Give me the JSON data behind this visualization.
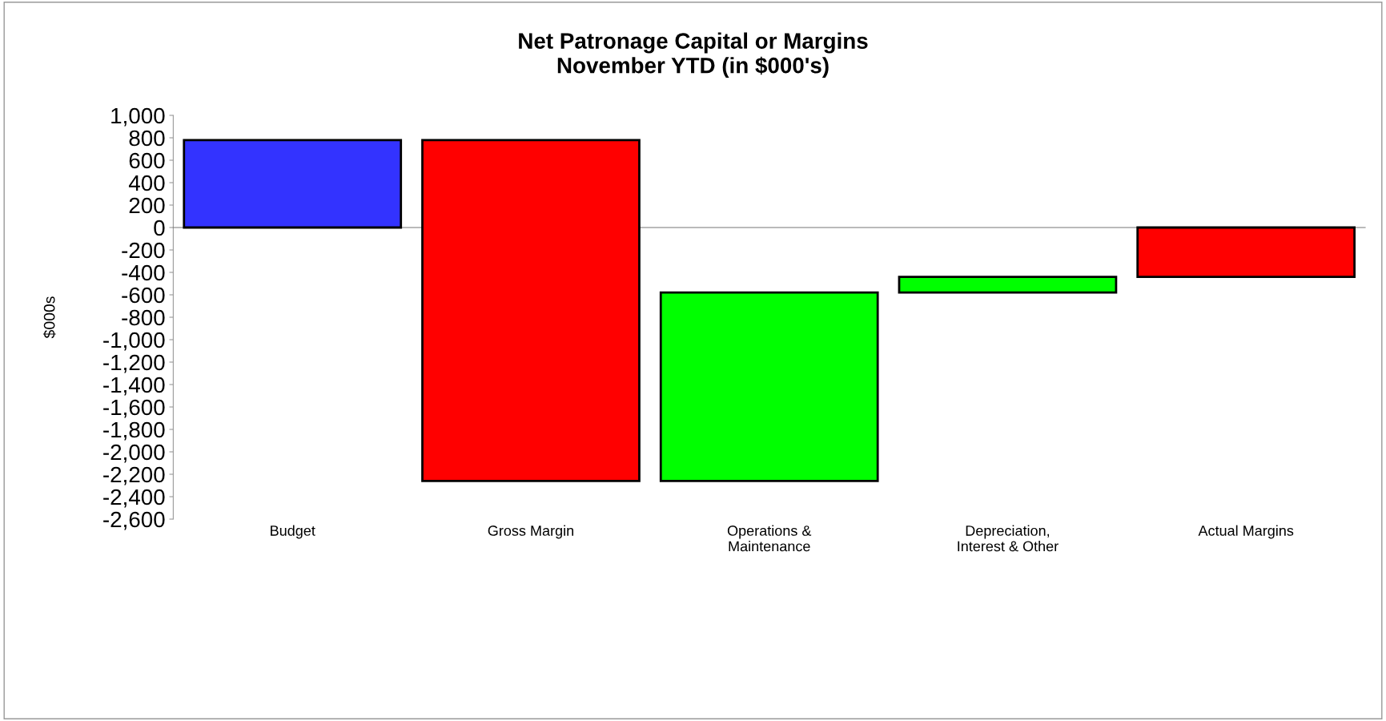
{
  "chart_data": {
    "type": "bar",
    "title": "Net Patronage Capital or Margins\nNovember YTD (in $000's)",
    "ylabel": "$000s",
    "categories": [
      "Budget",
      "Gross Margin",
      "Operations &\nMaintenance",
      "Depreciation,\nInterest & Other",
      "Actual Margins"
    ],
    "values": [
      780,
      -3040,
      1680,
      140,
      -440
    ],
    "base": [
      0,
      780,
      -2260,
      -580,
      0
    ],
    "colors": [
      "#3333ff",
      "#ff0000",
      "#00ff00",
      "#00ff00",
      "#ff0000"
    ],
    "ylim": [
      -2600,
      1000
    ],
    "yticks": [
      {
        "value": 1000,
        "label": "1,000"
      },
      800,
      600,
      400,
      200,
      0,
      -200,
      -400,
      -600,
      -800,
      {
        "value": -1000,
        "label": "-1,000"
      },
      {
        "value": -1200,
        "label": "-1,200"
      },
      {
        "value": -1400,
        "label": "-1,400"
      },
      {
        "value": -1600,
        "label": "-1,600"
      },
      {
        "value": -1800,
        "label": "-1,800"
      },
      {
        "value": -2000,
        "label": "-2,000"
      },
      {
        "value": -2200,
        "label": "-2,200"
      },
      {
        "value": -2400,
        "label": "-2,400"
      },
      {
        "value": -2600,
        "label": "-2,600"
      }
    ],
    "legend": false
  }
}
